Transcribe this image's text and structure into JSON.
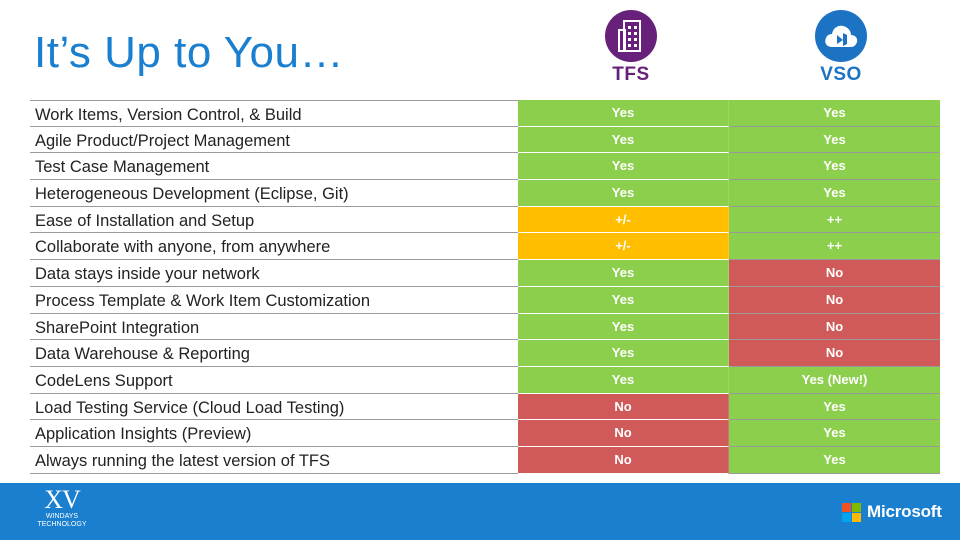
{
  "slide": {
    "title": "It’s Up to You…"
  },
  "logos": {
    "tfs": {
      "name": "TFS",
      "icon": "building-icon",
      "color": "#68217a"
    },
    "vso": {
      "name": "VSO",
      "icon": "cloud-icon",
      "color": "#1c73c4"
    }
  },
  "colors": {
    "green": "#8ccf4d",
    "yellow": "#ffbe00",
    "red": "#d0595a",
    "title_blue": "#1a7fcf"
  },
  "rows": [
    {
      "label": "Work Items, Version Control, & Build",
      "tfs": "Yes",
      "tfs_status": "green",
      "vso": "Yes",
      "vso_status": "green"
    },
    {
      "label": "Agile Product/Project  Management",
      "tfs": "Yes",
      "tfs_status": "green",
      "vso": "Yes",
      "vso_status": "green"
    },
    {
      "label": "Test Case Management",
      "tfs": "Yes",
      "tfs_status": "green",
      "vso": "Yes",
      "vso_status": "green"
    },
    {
      "label": "Heterogeneous  Development  (Eclipse, Git)",
      "tfs": "Yes",
      "tfs_status": "green",
      "vso": "Yes",
      "vso_status": "green"
    },
    {
      "label": "Ease of Installation and Setup",
      "tfs": "+/-",
      "tfs_status": "yellow",
      "vso": "++",
      "vso_status": "green"
    },
    {
      "label": "Collaborate with anyone, from anywhere",
      "tfs": "+/-",
      "tfs_status": "yellow",
      "vso": "++",
      "vso_status": "green"
    },
    {
      "label": "Data stays inside your network",
      "tfs": "Yes",
      "tfs_status": "green",
      "vso": "No",
      "vso_status": "red"
    },
    {
      "label": "Process Template & Work Item Customization",
      "tfs": "Yes",
      "tfs_status": "green",
      "vso": "No",
      "vso_status": "red"
    },
    {
      "label": "SharePoint Integration",
      "tfs": "Yes",
      "tfs_status": "green",
      "vso": "No",
      "vso_status": "red"
    },
    {
      "label": "Data Warehouse  & Reporting",
      "tfs": "Yes",
      "tfs_status": "green",
      "vso": "No",
      "vso_status": "red"
    },
    {
      "label": "CodeLens Support",
      "tfs": "Yes",
      "tfs_status": "green",
      "vso": "Yes (New!)",
      "vso_status": "green"
    },
    {
      "label": "Load Testing Service (Cloud Load Testing)",
      "tfs": "No",
      "tfs_status": "red",
      "vso": "Yes",
      "vso_status": "green"
    },
    {
      "label": "Application Insights (Preview)",
      "tfs": "No",
      "tfs_status": "red",
      "vso": "Yes",
      "vso_status": "green"
    },
    {
      "label": "Always running the latest version of TFS",
      "tfs": "No",
      "tfs_status": "red",
      "vso": "Yes",
      "vso_status": "green"
    }
  ],
  "footer": {
    "left_logo_mark": "XV",
    "left_logo_text_1": "WINDAYS",
    "left_logo_text_2": "TECHNOLOGY",
    "right_logo_text": "Microsoft",
    "right_logo_icon": "microsoft-logo-icon"
  }
}
